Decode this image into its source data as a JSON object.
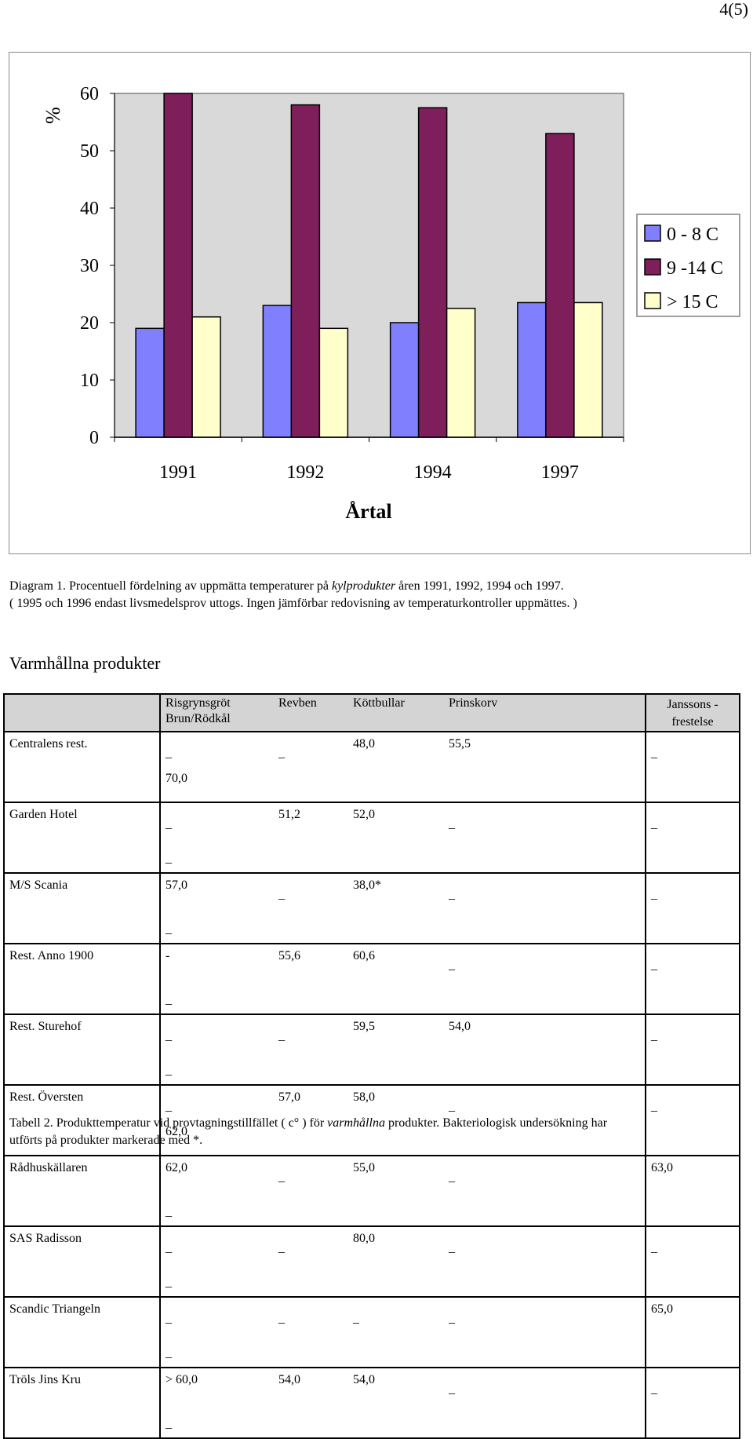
{
  "page_number": "4(5)",
  "chart_data": {
    "type": "bar",
    "categories": [
      "1991",
      "1992",
      "1994",
      "1997"
    ],
    "series": [
      {
        "name": "0 - 8 C",
        "color": "#8080ff",
        "values": [
          19,
          23,
          20,
          23.5
        ]
      },
      {
        "name": "9 -14 C",
        "color": "#7e1f5c",
        "values": [
          60,
          58,
          57.5,
          53
        ]
      },
      {
        "name": "> 15 C",
        "color": "#ffffcc",
        "values": [
          21,
          19,
          22.5,
          23.5
        ]
      }
    ],
    "ylabel": "%",
    "xlabel": "Årtal",
    "ylim": [
      0,
      60
    ],
    "yticks": [
      0,
      10,
      20,
      30,
      40,
      50,
      60
    ],
    "legend": "right",
    "plot_background": "#d9d9d9",
    "grid": false
  },
  "caption1": {
    "line1_before": "Diagram 1. Procentuell fördelning av uppmätta temperaturer på ",
    "line1_italic": "kylprodukter",
    "line1_after": " åren 1991, 1992, 1994 och 1997.",
    "line2": "( 1995 och 1996 endast livsmedelsprov uttogs. Ingen jämförbar redovisning av temperaturkontroller uppmättes. )"
  },
  "section_title": "Varmhållna produkter",
  "table": {
    "columns": [
      "Risgrynsgröt",
      "Revben",
      "Köttbullar",
      "Prinskorv",
      "Brun/Rödkål",
      "Janssons -\nfrestelse"
    ],
    "rows": [
      {
        "name": "Centralens rest.",
        "cells": [
          "_",
          "_",
          "48,0",
          "55,5",
          "70,0",
          "_"
        ]
      },
      {
        "name": "Garden Hotel",
        "cells": [
          "_",
          "51,2",
          "52,0",
          "_",
          "_",
          "_"
        ]
      },
      {
        "name": "M/S Scania",
        "cells": [
          "57,0",
          "_",
          "38,0*",
          "_",
          "_",
          "_"
        ]
      },
      {
        "name": "Rest. Anno 1900",
        "cells": [
          "-",
          "55,6",
          "60,6",
          "_",
          "_",
          "_"
        ]
      },
      {
        "name": "Rest. Sturehof",
        "cells": [
          "_",
          "_",
          "59,5",
          "54,0",
          "_",
          "_"
        ]
      },
      {
        "name": "Rest. Översten",
        "cells": [
          "_",
          "57,0",
          "58,0",
          "_",
          "62,0",
          "_"
        ]
      },
      {
        "name": "Rådhuskällaren",
        "cells": [
          "62,0",
          "_",
          "55,0",
          "_",
          "_",
          "63,0"
        ]
      },
      {
        "name": "SAS Radisson",
        "cells": [
          "_",
          "_",
          "80,0",
          "_",
          "_",
          "_"
        ]
      },
      {
        "name": "Scandic Triangeln",
        "cells": [
          "_",
          "_",
          "_",
          "_",
          "_",
          "65,0"
        ]
      },
      {
        "name": "Tröls Jins Kru",
        "cells": [
          "> 60,0",
          "54,0",
          "54,0",
          "_",
          "_",
          "_"
        ]
      }
    ]
  },
  "caption2": {
    "before": "Tabell 2. Produkttemperatur vid provtagningstillfället ( c° ) för ",
    "italic": "varmhållna",
    "after": " produkter. Bakteriologisk undersökning har",
    "line2": "utförts på produkter markerade med *."
  }
}
